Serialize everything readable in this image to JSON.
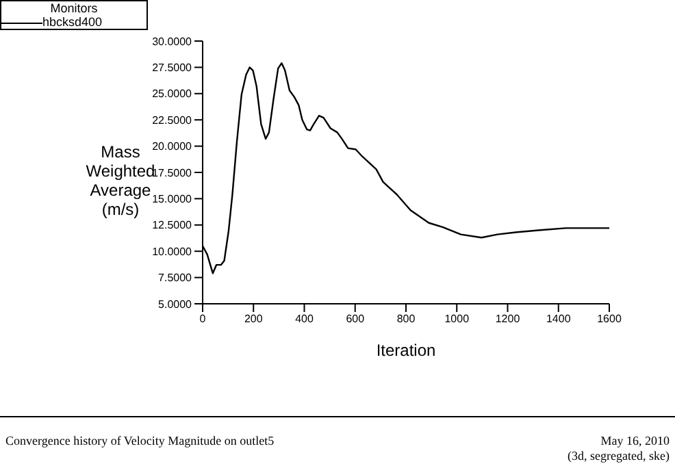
{
  "chart_data": {
    "type": "line",
    "xlabel": "Iteration",
    "ylabel": "Mass\nWeighted\nAverage\n(m/s)",
    "legend_title": "Monitors",
    "legend": "top left",
    "marker": "none",
    "line_style": "solid",
    "grid": false,
    "xlim": [
      0,
      1600
    ],
    "xticks": [
      0,
      200,
      400,
      600,
      800,
      1000,
      1200,
      1400,
      1600
    ],
    "ylim": [
      5,
      30
    ],
    "yticks": [
      {
        "value": 5,
        "label": "5.0000"
      },
      {
        "value": 7.5,
        "label": "7.5000"
      },
      {
        "value": 10,
        "label": "10.0000"
      },
      {
        "value": 12.5,
        "label": "12.5000"
      },
      {
        "value": 15,
        "label": "15.0000"
      },
      {
        "value": 17.5,
        "label": "17.5000"
      },
      {
        "value": 20,
        "label": "20.0000"
      },
      {
        "value": 22.5,
        "label": "22.5000"
      },
      {
        "value": 25,
        "label": "25.0000"
      },
      {
        "value": 27.5,
        "label": "27.5000"
      },
      {
        "value": 30,
        "label": "30.0000"
      }
    ],
    "x": [
      0,
      18,
      40,
      54,
      72,
      85,
      102,
      117,
      135,
      153,
      171,
      185,
      198,
      212,
      230,
      248,
      261,
      279,
      297,
      311,
      324,
      342,
      360,
      378,
      392,
      410,
      423,
      437,
      458,
      476,
      503,
      530,
      548,
      572,
      602,
      629,
      656,
      683,
      710,
      737,
      764,
      818,
      890,
      944,
      1016,
      1097,
      1160,
      1232,
      1322,
      1429,
      1600
    ],
    "series": [
      {
        "name": "hbcksd400",
        "color": "#000000",
        "values": [
          10.5,
          9.7,
          7.9,
          8.7,
          8.7,
          9.1,
          11.9,
          15.4,
          20.5,
          24.9,
          26.8,
          27.5,
          27.2,
          25.7,
          22.1,
          20.7,
          21.3,
          24.5,
          27.4,
          27.9,
          27.2,
          25.3,
          24.7,
          23.9,
          22.5,
          21.6,
          21.5,
          22.1,
          22.9,
          22.7,
          21.7,
          21.3,
          20.7,
          19.8,
          19.7,
          19,
          18.4,
          17.8,
          16.6,
          16,
          15.4,
          13.9,
          12.7,
          12.3,
          11.6,
          11.3,
          11.6,
          11.8,
          12,
          12.2,
          12.2
        ]
      }
    ],
    "annotations": [
      "Convergence history of Velocity Magnitude on outlet5",
      "May 16, 2010",
      "(3d, segregated, ske)"
    ]
  }
}
